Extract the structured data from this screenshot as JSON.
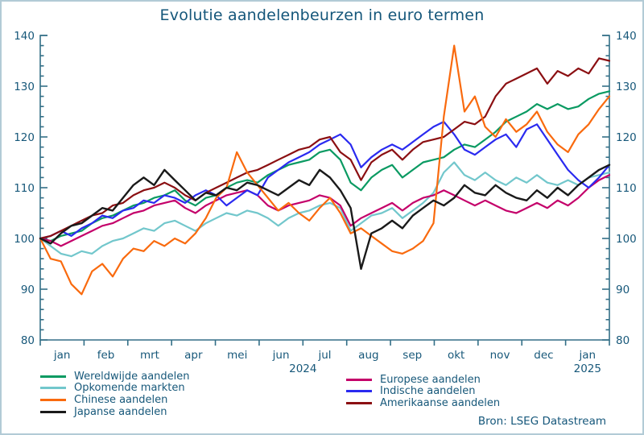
{
  "title": "Evolutie aandelenbeurzen in euro termen",
  "source": "Bron: LSEG Datastream",
  "colors": {
    "text": "#17587a",
    "axis": "#336f87",
    "border": "#b2cbd6",
    "background": "#ffffff"
  },
  "chart_data": {
    "type": "line",
    "title": "Evolutie aandelenbeurzen in euro termen",
    "xlabel": "",
    "ylabel": "",
    "ylim": [
      80,
      140
    ],
    "y_major_step": 10,
    "y_minor_step": 2,
    "grid": false,
    "x_unit": "weekly points, jan 2024 - mid jan 2025, index 100 = start",
    "x_months": [
      "jan",
      "feb",
      "mrt",
      "apr",
      "mei",
      "jun",
      "jul",
      "aug",
      "sep",
      "okt",
      "nov",
      "dec",
      "jan"
    ],
    "year_labels": [
      {
        "label": "2024",
        "month_center": 6.0
      },
      {
        "label": "2025",
        "month_center": 12.5
      }
    ],
    "legend_position": "bottom-left, two columns",
    "legend": {
      "columns": [
        [
          0,
          1,
          2,
          3
        ],
        [
          4,
          5,
          6
        ]
      ]
    },
    "series": [
      {
        "name": "Wereldwijde aandelen",
        "color": "#0a9a62",
        "values": [
          100,
          99.5,
          100.5,
          101,
          101.5,
          103,
          104,
          104.5,
          105.5,
          106.5,
          107,
          108,
          108.5,
          109.5,
          107.5,
          106.5,
          108,
          108.5,
          110,
          111,
          111.5,
          111,
          112.5,
          113.5,
          114.5,
          115,
          115.5,
          117,
          117.5,
          115.5,
          111,
          109.5,
          112,
          113.5,
          114.5,
          112,
          113.5,
          115,
          115.5,
          116,
          117.5,
          118.5,
          118,
          119.5,
          121,
          123,
          124,
          125,
          126.5,
          125.5,
          126.5,
          125.5,
          126,
          127.5,
          128.5,
          129
        ]
      },
      {
        "name": "Opkomende markten",
        "color": "#72c7cc",
        "values": [
          100,
          98.5,
          97,
          96.5,
          97.5,
          97,
          98.5,
          99.5,
          100,
          101,
          102,
          101.5,
          103,
          103.5,
          102.5,
          101.5,
          103,
          104,
          105,
          104.5,
          105.5,
          105,
          104,
          102.5,
          104,
          105,
          105.5,
          106.5,
          107,
          106,
          101.5,
          103,
          104.5,
          105,
          106,
          104,
          105.5,
          107,
          109,
          113,
          115,
          112.5,
          111.5,
          113,
          111.5,
          110.5,
          112,
          111,
          112.5,
          111,
          110.5,
          111.5,
          110.5,
          112,
          112.5,
          113
        ]
      },
      {
        "name": "Chinese aandelen",
        "color": "#f96a0e",
        "values": [
          100,
          96,
          95.5,
          91,
          89,
          93.5,
          95,
          92.5,
          96,
          98,
          97.5,
          99.5,
          98.5,
          100,
          99,
          101,
          104,
          108,
          110,
          117,
          113,
          110.5,
          108,
          105.5,
          107,
          105,
          103.5,
          106,
          108,
          105,
          101,
          102,
          100.5,
          99,
          97.5,
          97,
          98,
          99.5,
          103,
          124,
          138,
          125,
          128,
          122,
          120,
          123.5,
          121,
          122.5,
          125,
          121,
          118.5,
          117,
          120.5,
          122.5,
          125.5,
          128
        ]
      },
      {
        "name": "Japanse aandelen",
        "color": "#1a1a1a",
        "values": [
          100,
          99,
          101,
          102.5,
          103,
          104.5,
          106,
          105.5,
          108,
          110.5,
          112,
          110.5,
          113.5,
          111.5,
          109.5,
          107.5,
          109,
          108.5,
          110,
          109.5,
          111,
          110.5,
          109.5,
          108.5,
          110,
          111.5,
          110.5,
          113.5,
          112,
          109.5,
          106,
          94,
          101,
          102,
          103.5,
          102,
          104.5,
          106,
          107.5,
          106.5,
          108,
          110.5,
          109,
          108.5,
          110.5,
          109,
          108,
          107.5,
          109.5,
          108,
          110,
          108.5,
          110.5,
          112,
          113.5,
          114.5
        ]
      },
      {
        "name": "Europese aandelen",
        "color": "#c4006a",
        "values": [
          100,
          99.5,
          98.5,
          99.5,
          100.5,
          101.5,
          102.5,
          103,
          104,
          105,
          105.5,
          106.5,
          107,
          107.5,
          106,
          105,
          106.5,
          107.5,
          108.5,
          109,
          109.5,
          108.5,
          106.5,
          105.5,
          106.5,
          107,
          107.5,
          108.5,
          108,
          106.5,
          102.5,
          104,
          105,
          106,
          107,
          105.5,
          107,
          108,
          108.5,
          109.5,
          108.5,
          107.5,
          106.5,
          107.5,
          106.5,
          105.5,
          105,
          106,
          107,
          106,
          107.5,
          106.5,
          108,
          110,
          111.5,
          112.5
        ]
      },
      {
        "name": "Indische aandelen",
        "color": "#2a2af0",
        "values": [
          100,
          100.5,
          101.5,
          100.5,
          102,
          103,
          104.5,
          104,
          105.5,
          106,
          107.5,
          107,
          108.5,
          108,
          107,
          108.5,
          109.5,
          108.5,
          106.5,
          108,
          109.5,
          108.5,
          112,
          113.5,
          115,
          116,
          117,
          118.5,
          119.5,
          120.5,
          118.5,
          114,
          116,
          117.5,
          118.5,
          117.5,
          119,
          120.5,
          122,
          123,
          120.5,
          117.5,
          116.5,
          118,
          119.5,
          120.5,
          118,
          121.5,
          122.5,
          119.5,
          116.5,
          113.5,
          111.5,
          110,
          112,
          114.5
        ]
      },
      {
        "name": "Amerikaanse aandelen",
        "color": "#8b0f12",
        "values": [
          100,
          100.5,
          101.5,
          102.5,
          103.5,
          104.5,
          105,
          106.5,
          107,
          108.5,
          109.5,
          110,
          111,
          110,
          108.5,
          107.5,
          109,
          110,
          111,
          112,
          113,
          113.5,
          114.5,
          115.5,
          116.5,
          117.5,
          118,
          119.5,
          120,
          117,
          115.5,
          111.5,
          115,
          116.5,
          117.5,
          115.5,
          117.5,
          119,
          119.5,
          120,
          121.5,
          123,
          122.5,
          124,
          128,
          130.5,
          131.5,
          132.5,
          133.5,
          130.5,
          133,
          132,
          133.5,
          132.5,
          135.5,
          135
        ]
      }
    ]
  }
}
